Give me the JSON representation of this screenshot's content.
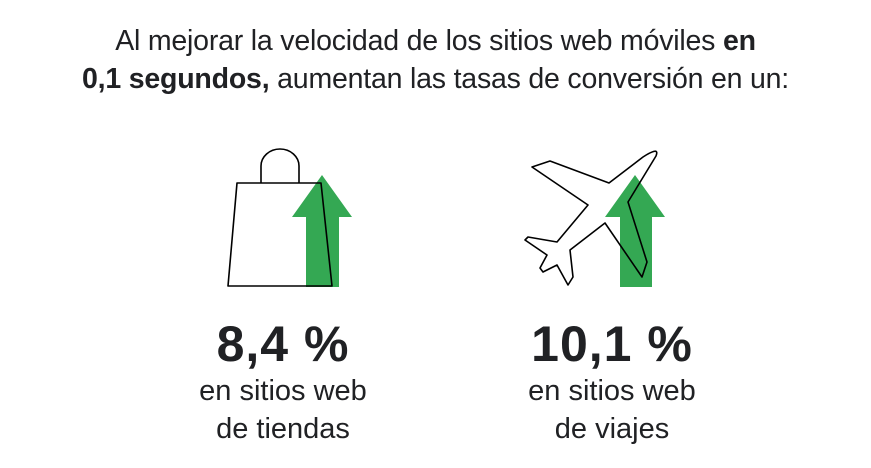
{
  "headline": {
    "part1": "Al mejorar la velocidad de los sitios web móviles ",
    "bold1": "en",
    "bold2": "0,1 segundos,",
    "part2": " aumentan las tasas de conversión en un:"
  },
  "stats": [
    {
      "value": "8,4 %",
      "line1": "en sitios web",
      "line2": "de tiendas",
      "icon": "shopping-bag-icon"
    },
    {
      "value": "10,1 %",
      "line1": "en sitios web",
      "line2": "de viajes",
      "icon": "airplane-icon"
    }
  ],
  "colors": {
    "accent": "#34a853",
    "text": "#202124"
  }
}
